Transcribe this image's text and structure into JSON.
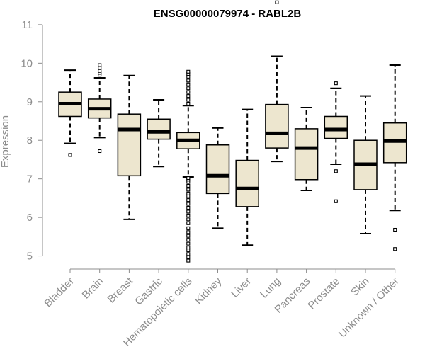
{
  "chart_data": {
    "type": "boxplot",
    "title": "ENSG00000079974 - RABL2B",
    "xlabel": "",
    "ylabel": "Expression",
    "ylim": [
      4.9,
      11.2
    ],
    "yticks": [
      5,
      6,
      7,
      8,
      9,
      10,
      11
    ],
    "grid": false,
    "colors": {
      "box_fill": "#ede6cf",
      "box_stroke": "#000000",
      "axis": "#8c8c8c"
    },
    "categories": [
      "Bladder",
      "Brain",
      "Breast",
      "Gastric",
      "Hematopoietic cells",
      "Kidney",
      "Liver",
      "Lung",
      "Pancreas",
      "Prostate",
      "Skin",
      "Unknown / Other"
    ],
    "boxes": [
      {
        "whisker_low": 7.92,
        "q1": 8.62,
        "median": 8.95,
        "q3": 9.25,
        "whisker_high": 9.82,
        "outliers": [
          7.62
        ]
      },
      {
        "whisker_low": 8.07,
        "q1": 8.58,
        "median": 8.82,
        "q3": 9.07,
        "whisker_high": 9.62,
        "outliers": [
          7.72,
          9.7,
          9.75,
          9.8,
          9.88,
          9.95
        ]
      },
      {
        "whisker_low": 5.95,
        "q1": 7.08,
        "median": 8.28,
        "q3": 8.68,
        "whisker_high": 9.68,
        "outliers": []
      },
      {
        "whisker_low": 7.32,
        "q1": 8.03,
        "median": 8.22,
        "q3": 8.55,
        "whisker_high": 9.05,
        "outliers": []
      },
      {
        "whisker_low": 7.05,
        "q1": 7.78,
        "median": 8.0,
        "q3": 8.2,
        "whisker_high": 8.9,
        "outliers": [
          4.88,
          4.97,
          5.05,
          5.15,
          5.22,
          5.32,
          5.42,
          5.52,
          5.62,
          5.72,
          5.85,
          5.95,
          6.05,
          6.15,
          6.25,
          6.35,
          6.45,
          6.55,
          6.62,
          6.72,
          6.82,
          6.92,
          6.98,
          7.02,
          8.95,
          9.05,
          9.15,
          9.25,
          9.35,
          9.45,
          9.55,
          9.65,
          9.72,
          9.78
        ]
      },
      {
        "whisker_low": 5.72,
        "q1": 6.62,
        "median": 7.08,
        "q3": 7.88,
        "whisker_high": 8.32,
        "outliers": []
      },
      {
        "whisker_low": 5.28,
        "q1": 6.28,
        "median": 6.75,
        "q3": 7.48,
        "whisker_high": 8.8,
        "outliers": []
      },
      {
        "whisker_low": 7.45,
        "q1": 7.8,
        "median": 8.18,
        "q3": 8.93,
        "whisker_high": 10.18,
        "outliers": [
          11.58
        ]
      },
      {
        "whisker_low": 6.7,
        "q1": 6.98,
        "median": 7.8,
        "q3": 8.3,
        "whisker_high": 8.85,
        "outliers": []
      },
      {
        "whisker_low": 7.38,
        "q1": 8.05,
        "median": 8.28,
        "q3": 8.62,
        "whisker_high": 9.35,
        "outliers": [
          6.42,
          7.2,
          9.48
        ]
      },
      {
        "whisker_low": 5.58,
        "q1": 6.72,
        "median": 7.38,
        "q3": 8.0,
        "whisker_high": 9.15,
        "outliers": []
      },
      {
        "whisker_low": 6.18,
        "q1": 7.42,
        "median": 7.98,
        "q3": 8.45,
        "whisker_high": 9.95,
        "outliers": [
          5.18,
          5.68
        ]
      }
    ]
  }
}
